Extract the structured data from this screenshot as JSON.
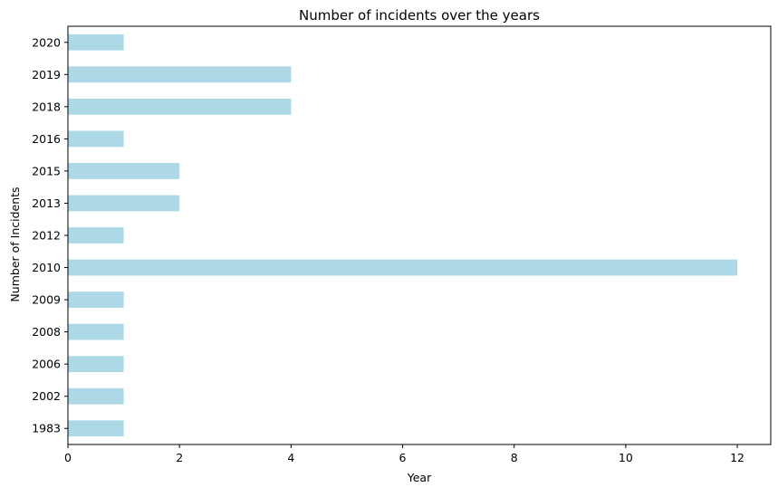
{
  "chart_data": {
    "type": "bar",
    "orientation": "horizontal",
    "title": "Number of incidents over the years",
    "xlabel": "Year",
    "ylabel": "Number of Incidents",
    "categories": [
      "1983",
      "2002",
      "2006",
      "2008",
      "2009",
      "2010",
      "2012",
      "2013",
      "2015",
      "2016",
      "2018",
      "2019",
      "2020"
    ],
    "values": [
      1,
      1,
      1,
      1,
      1,
      12,
      1,
      2,
      2,
      1,
      4,
      4,
      1
    ],
    "xlim": [
      0,
      12.6
    ],
    "xticks": [
      0,
      2,
      4,
      6,
      8,
      10,
      12
    ],
    "grid": false,
    "legend": "none",
    "colors": {
      "bar": "#add8e6",
      "axis": "#000000",
      "background": "#ffffff"
    }
  }
}
